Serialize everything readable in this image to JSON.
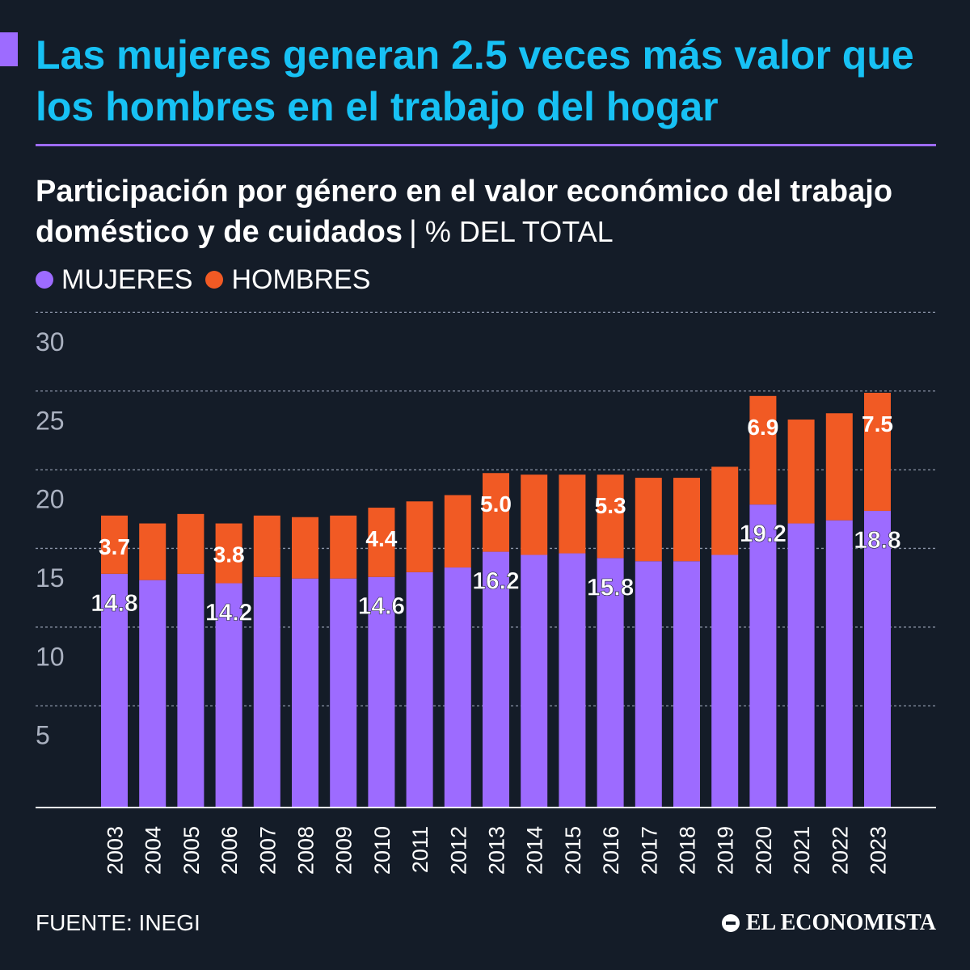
{
  "title": "Las mujeres generan 2.5 veces más valor que los hombres en el trabajo del hogar",
  "subtitle": "Participación por género en el valor económico del trabajo doméstico y de cuidados",
  "separator": "|",
  "unit_label": "% DEL TOTAL",
  "legend": [
    {
      "label": "MUJERES",
      "color": "#9d6bff"
    },
    {
      "label": "HOMBRES",
      "color": "#f15a24"
    }
  ],
  "source": "FUENTE: INEGI",
  "logo_text": "EL ECONOMISTA",
  "colors": {
    "background": "#141c28",
    "title": "#17c1f4",
    "accent": "#9d6bff",
    "mujeres": "#9d6bff",
    "hombres": "#f15a24"
  },
  "chart_data": {
    "type": "bar",
    "stacked": true,
    "categories": [
      "2003",
      "2004",
      "2005",
      "2006",
      "2007",
      "2008",
      "2009",
      "2010",
      "2011",
      "2012",
      "2013",
      "2014",
      "2015",
      "2016",
      "2017",
      "2018",
      "2019",
      "2020",
      "2021",
      "2022",
      "2023"
    ],
    "series": [
      {
        "name": "MUJERES",
        "values": [
          14.8,
          14.4,
          14.8,
          14.2,
          14.6,
          14.5,
          14.5,
          14.6,
          14.9,
          15.2,
          16.2,
          16.0,
          16.1,
          15.8,
          15.6,
          15.6,
          16.0,
          19.2,
          18.0,
          18.2,
          18.8
        ]
      },
      {
        "name": "HOMBRES",
        "values": [
          3.7,
          3.6,
          3.8,
          3.8,
          3.9,
          3.9,
          4.0,
          4.4,
          4.5,
          4.6,
          5.0,
          5.1,
          5.0,
          5.3,
          5.3,
          5.3,
          5.6,
          6.9,
          6.6,
          6.8,
          7.5
        ]
      }
    ],
    "data_labels": {
      "MUJERES": {
        "2003": "14.8",
        "2006": "14.2",
        "2010": "14.6",
        "2013": "16.2",
        "2016": "15.8",
        "2020": "19.2",
        "2023": "18.8"
      },
      "HOMBRES": {
        "2003": "3.7",
        "2006": "3.8",
        "2010": "4.4",
        "2013": "5.0",
        "2016": "5.3",
        "2020": "6.9",
        "2023": "7.5"
      }
    },
    "y_ticks": [
      5,
      10,
      15,
      20,
      25,
      30
    ],
    "ylim": [
      0,
      30
    ],
    "grid": true,
    "xlabel": "",
    "ylabel": ""
  }
}
